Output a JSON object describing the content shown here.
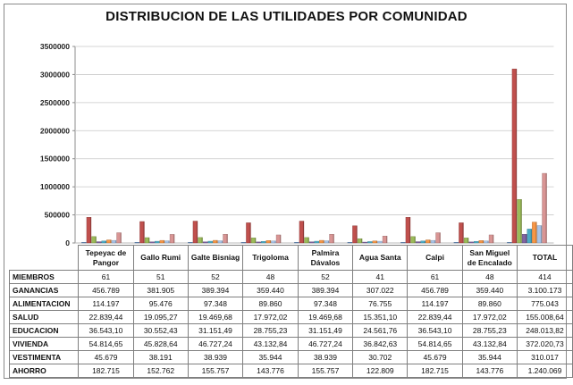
{
  "title": "DISTRIBUCION DE LAS UTILIDADES POR COMUNIDAD",
  "chart_data": {
    "type": "bar",
    "title": "DISTRIBUCION DE LAS UTILIDADES POR COMUNIDAD",
    "categories": [
      "Tepeyac de Pangor",
      "Gallo Rumi",
      "Galte Bisniag",
      "Trigoloma",
      "Palmira Dávalos",
      "Agua Santa",
      "Calpi",
      "San Miguel de Encalado",
      "TOTAL"
    ],
    "ylim": [
      0,
      3500000
    ],
    "yticks": [
      0,
      500000,
      1000000,
      1500000,
      2000000,
      2500000,
      3000000,
      3500000
    ],
    "ytick_labels": [
      "0",
      "500000",
      "1000000",
      "1500000",
      "2000000",
      "2500000",
      "3000000",
      "3500000"
    ],
    "grid": true,
    "legend": "table below chart",
    "series": [
      {
        "name": "MIEMBROS",
        "color": "#4f81bd",
        "values": [
          61,
          51,
          52,
          48,
          52,
          41,
          61,
          48,
          414
        ],
        "labels": [
          "61",
          "51",
          "52",
          "48",
          "52",
          "41",
          "61",
          "48",
          "414"
        ]
      },
      {
        "name": "GANANCIAS",
        "color": "#c0504d",
        "values": [
          456789,
          381905,
          389394,
          359440,
          389394,
          307022,
          456789,
          359440,
          3100173
        ],
        "labels": [
          "456.789",
          "381.905",
          "389.394",
          "359.440",
          "389.394",
          "307.022",
          "456.789",
          "359.440",
          "3.100.173"
        ]
      },
      {
        "name": "ALIMENTACION",
        "color": "#9bbb59",
        "values": [
          114197,
          95476,
          97348,
          89860,
          97348,
          76755,
          114197,
          89860,
          775043
        ],
        "labels": [
          "114.197",
          "95.476",
          "97.348",
          "89.860",
          "97.348",
          "76.755",
          "114.197",
          "89.860",
          "775.043"
        ]
      },
      {
        "name": "SALUD",
        "color": "#8064a2",
        "values": [
          22839.44,
          19095.27,
          19469.68,
          17972.02,
          19469.68,
          15351.1,
          22839.44,
          17972.02,
          155008.64
        ],
        "labels": [
          "22.839,44",
          "19.095,27",
          "19.469,68",
          "17.972,02",
          "19.469,68",
          "15.351,10",
          "22.839,44",
          "17.972,02",
          "155.008,64"
        ]
      },
      {
        "name": "EDUCACION",
        "color": "#4bacc6",
        "values": [
          36543.1,
          30552.43,
          31151.49,
          28755.23,
          31151.49,
          24561.76,
          36543.1,
          28755.23,
          248013.82
        ],
        "labels": [
          "36.543,10",
          "30.552,43",
          "31.151,49",
          "28.755,23",
          "31.151,49",
          "24.561,76",
          "36.543,10",
          "28.755,23",
          "248.013,82"
        ]
      },
      {
        "name": "VIVIENDA",
        "color": "#f79646",
        "values": [
          54814.65,
          45828.64,
          46727.24,
          43132.84,
          46727.24,
          36842.63,
          54814.65,
          43132.84,
          372020.73
        ],
        "labels": [
          "54.814,65",
          "45.828,64",
          "46.727,24",
          "43.132,84",
          "46.727,24",
          "36.842,63",
          "54.814,65",
          "43.132,84",
          "372.020,73"
        ]
      },
      {
        "name": "VESTIMENTA",
        "color": "#a9c4e8",
        "values": [
          45679,
          38191,
          38939,
          35944,
          38939,
          30702,
          45679,
          35944,
          310017
        ],
        "labels": [
          "45.679",
          "38.191",
          "38.939",
          "35.944",
          "38.939",
          "30.702",
          "45.679",
          "35.944",
          "310.017"
        ]
      },
      {
        "name": "AHORRO",
        "color": "#d99594",
        "values": [
          182715,
          152762,
          155757,
          143776,
          155757,
          122809,
          182715,
          143776,
          1240069
        ],
        "labels": [
          "182.715",
          "152.762",
          "155.757",
          "143.776",
          "155.757",
          "122.809",
          "182.715",
          "143.776",
          "1.240.069"
        ]
      }
    ]
  }
}
